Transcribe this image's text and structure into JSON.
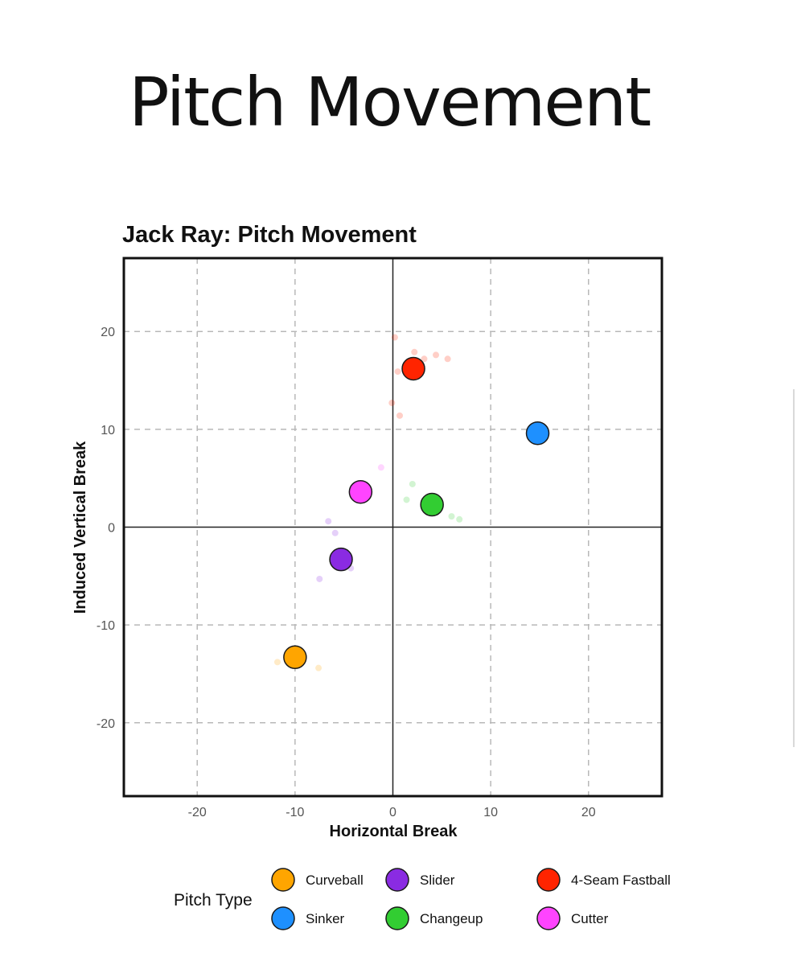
{
  "page": {
    "title": "Pitch Movement"
  },
  "chart_data": {
    "type": "scatter",
    "title": "Jack Ray: Pitch Movement",
    "xlabel": "Horizontal Break",
    "ylabel": "Induced Vertical Break",
    "xlim": [
      -27.5,
      27.5
    ],
    "ylim": [
      -27.5,
      27.5
    ],
    "xticks": [
      -20,
      -10,
      0,
      10,
      20
    ],
    "yticks": [
      -20,
      -10,
      0,
      10,
      20
    ],
    "grid": true,
    "legend": {
      "title": "Pitch Type",
      "placement": "bottom"
    },
    "series": [
      {
        "name": "Curveball",
        "color": "#FFA500",
        "mean": [
          -10,
          -13.3
        ],
        "points": [
          [
            -11.8,
            -13.8
          ],
          [
            -7.6,
            -14.4
          ],
          [
            -10.3,
            -13.0
          ]
        ]
      },
      {
        "name": "Sinker",
        "color": "#1E90FF",
        "mean": [
          14.8,
          9.6
        ],
        "points": []
      },
      {
        "name": "Slider",
        "color": "#8A2BE2",
        "mean": [
          -5.3,
          -3.3
        ],
        "points": [
          [
            -6.6,
            0.6
          ],
          [
            -5.9,
            -0.6
          ],
          [
            -4.4,
            -3.1
          ],
          [
            -4.3,
            -4.2
          ],
          [
            -7.5,
            -5.3
          ]
        ]
      },
      {
        "name": "Changeup",
        "color": "#32CD32",
        "mean": [
          4.0,
          2.3
        ],
        "points": [
          [
            2.0,
            4.4
          ],
          [
            1.4,
            2.8
          ],
          [
            6.0,
            1.1
          ],
          [
            6.8,
            0.8
          ],
          [
            3.8,
            2.2
          ]
        ]
      },
      {
        "name": "4-Seam Fastball",
        "color": "#FF2400",
        "mean": [
          2.1,
          16.2
        ],
        "points": [
          [
            0.2,
            19.4
          ],
          [
            2.2,
            17.9
          ],
          [
            3.2,
            17.2
          ],
          [
            4.4,
            17.6
          ],
          [
            5.6,
            17.2
          ],
          [
            0.5,
            15.9
          ],
          [
            -0.1,
            12.7
          ],
          [
            0.7,
            11.4
          ]
        ]
      },
      {
        "name": "Cutter",
        "color": "#FF44FF",
        "mean": [
          -3.3,
          3.6
        ],
        "points": [
          [
            -1.2,
            6.1
          ]
        ]
      }
    ]
  }
}
